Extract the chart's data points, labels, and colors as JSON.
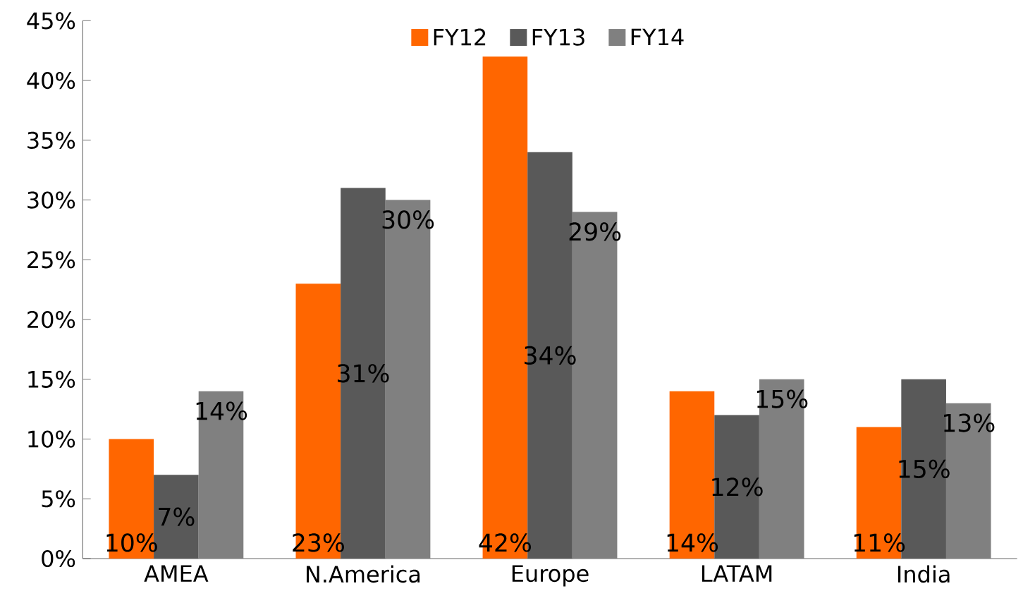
{
  "chart_data": {
    "type": "bar",
    "categories": [
      "AMEA",
      "N.America",
      "Europe",
      "LATAM",
      "India"
    ],
    "series": [
      {
        "name": "FY12",
        "color": "#ff6600",
        "values": [
          10,
          23,
          42,
          14,
          11
        ],
        "value_labels": [
          "10%",
          "23%",
          "42%",
          "14%",
          "11%"
        ]
      },
      {
        "name": "FY13",
        "color": "#595959",
        "values": [
          7,
          31,
          34,
          12,
          15
        ],
        "value_labels": [
          "7%",
          "31%",
          "34%",
          "12%",
          "15%"
        ]
      },
      {
        "name": "FY14",
        "color": "#808080",
        "values": [
          14,
          30,
          29,
          15,
          13
        ],
        "value_labels": [
          "14%",
          "30%",
          "29%",
          "15%",
          "13%"
        ]
      }
    ],
    "ylim": [
      0,
      45
    ],
    "yticks": [
      {
        "value": 0,
        "label": "0%"
      },
      {
        "value": 5,
        "label": "5%"
      },
      {
        "value": 10,
        "label": "10%"
      },
      {
        "value": 15,
        "label": "15%"
      },
      {
        "value": 20,
        "label": "20%"
      },
      {
        "value": 25,
        "label": "25%"
      },
      {
        "value": 30,
        "label": "30%"
      },
      {
        "value": 35,
        "label": "35%"
      },
      {
        "value": 40,
        "label": "40%"
      },
      {
        "value": 45,
        "label": "45%"
      }
    ],
    "grid": false,
    "legend": "top"
  }
}
